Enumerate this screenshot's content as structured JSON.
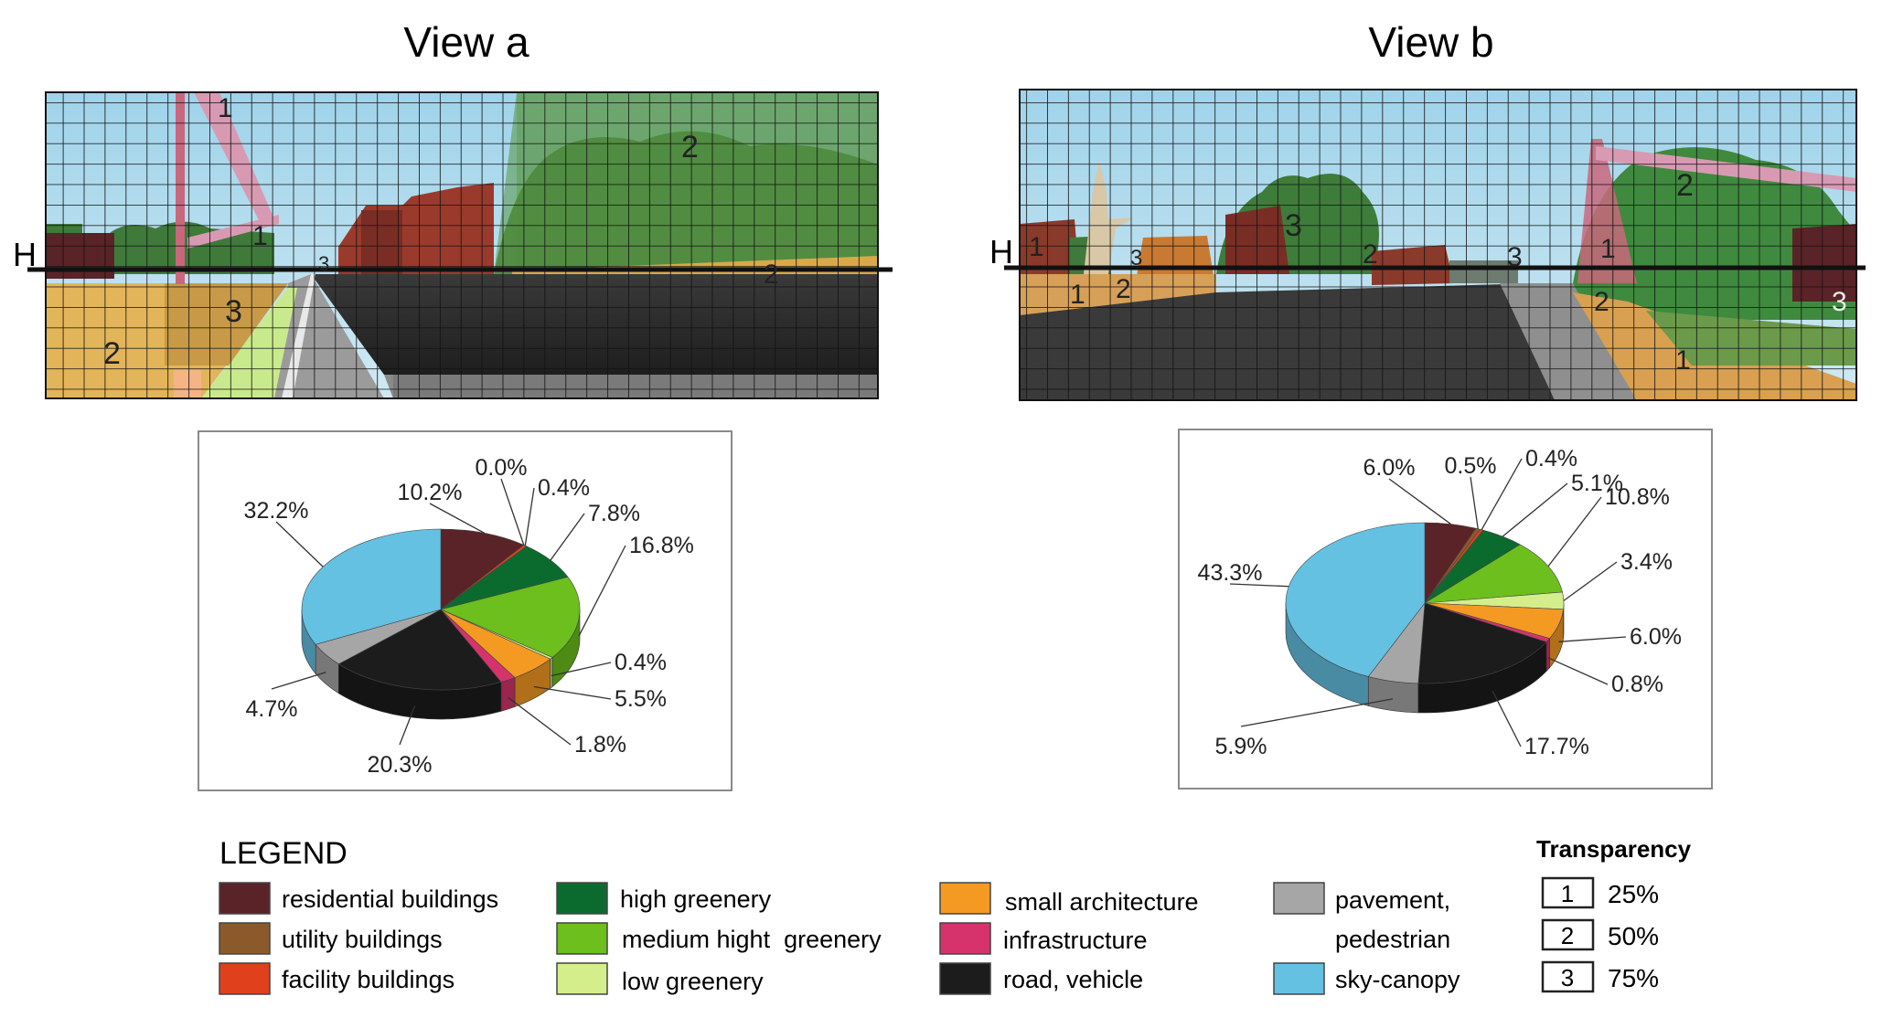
{
  "views": [
    {
      "title": "View a",
      "horizon_label": "H",
      "zone_labels": [
        "1",
        "1",
        "2",
        "2",
        "2",
        "3",
        "3"
      ],
      "chart_data": {
        "type": "pie",
        "categories": [
          "residential buildings",
          "utility buildings",
          "facility buildings",
          "small architecture",
          "high greenery",
          "medium hight  greenery",
          "low greenery",
          "infrastructure",
          "road, vehicle",
          "pavement, pedestrian",
          "sky-canopy"
        ],
        "values": [
          10.2,
          0.0,
          0.4,
          7.8,
          16.8,
          0.4,
          5.5,
          1.8,
          20.3,
          4.7,
          32.2
        ],
        "labels": [
          "10.2%",
          "0.0%",
          "0.4%",
          "7.8%",
          "16.8%",
          "0.4%",
          "5.5%",
          "1.8%",
          "20.3%",
          "4.7%",
          "32.2%"
        ]
      }
    },
    {
      "title": "View b",
      "horizon_label": "H",
      "zone_labels": [
        "1",
        "1",
        "1",
        "1",
        "2",
        "2",
        "2",
        "2",
        "3",
        "3",
        "3",
        "3"
      ],
      "chart_data": {
        "type": "pie",
        "categories": [
          "residential buildings",
          "utility buildings",
          "facility buildings",
          "small architecture",
          "high greenery",
          "medium hight  greenery",
          "low greenery",
          "infrastructure",
          "road, vehicle",
          "pavement, pedestrian",
          "sky-canopy"
        ],
        "values": [
          6.0,
          0.5,
          0.4,
          5.1,
          10.8,
          3.4,
          6.0,
          0.8,
          17.7,
          5.9,
          43.3
        ],
        "labels": [
          "6.0%",
          "0.5%",
          "0.4%",
          "5.1%",
          "10.8%",
          "3.4%",
          "6.0%",
          "0.8%",
          "17.7%",
          "5.9%",
          "43.3%"
        ]
      }
    }
  ],
  "legend": {
    "title": "LEGEND",
    "items": [
      {
        "label": "residential buildings",
        "color": "#5a2327"
      },
      {
        "label": "utility buildings",
        "color": "#8c5a2a"
      },
      {
        "label": "facility buildings",
        "color": "#e0401c"
      },
      {
        "label": "high greenery",
        "color": "#0b6b2e"
      },
      {
        "label": "medium hight  greenery",
        "color": "#6cbf1c"
      },
      {
        "label": "low greenery",
        "color": "#d4ee8c"
      },
      {
        "label": "small architecture",
        "color": "#f49a22"
      },
      {
        "label": "infrastructure",
        "color": "#d6336c"
      },
      {
        "label": "road, vehicle",
        "color": "#1c1c1c"
      },
      {
        "label": "pavement,",
        "label2": "pedestrian",
        "color": "#a6a6a6"
      },
      {
        "label": "sky-canopy",
        "color": "#64c1e2"
      }
    ]
  },
  "transparency": {
    "title": "Transparency",
    "items": [
      {
        "key": "1",
        "value": "25%"
      },
      {
        "key": "2",
        "value": "50%"
      },
      {
        "key": "3",
        "value": "75%"
      }
    ]
  }
}
